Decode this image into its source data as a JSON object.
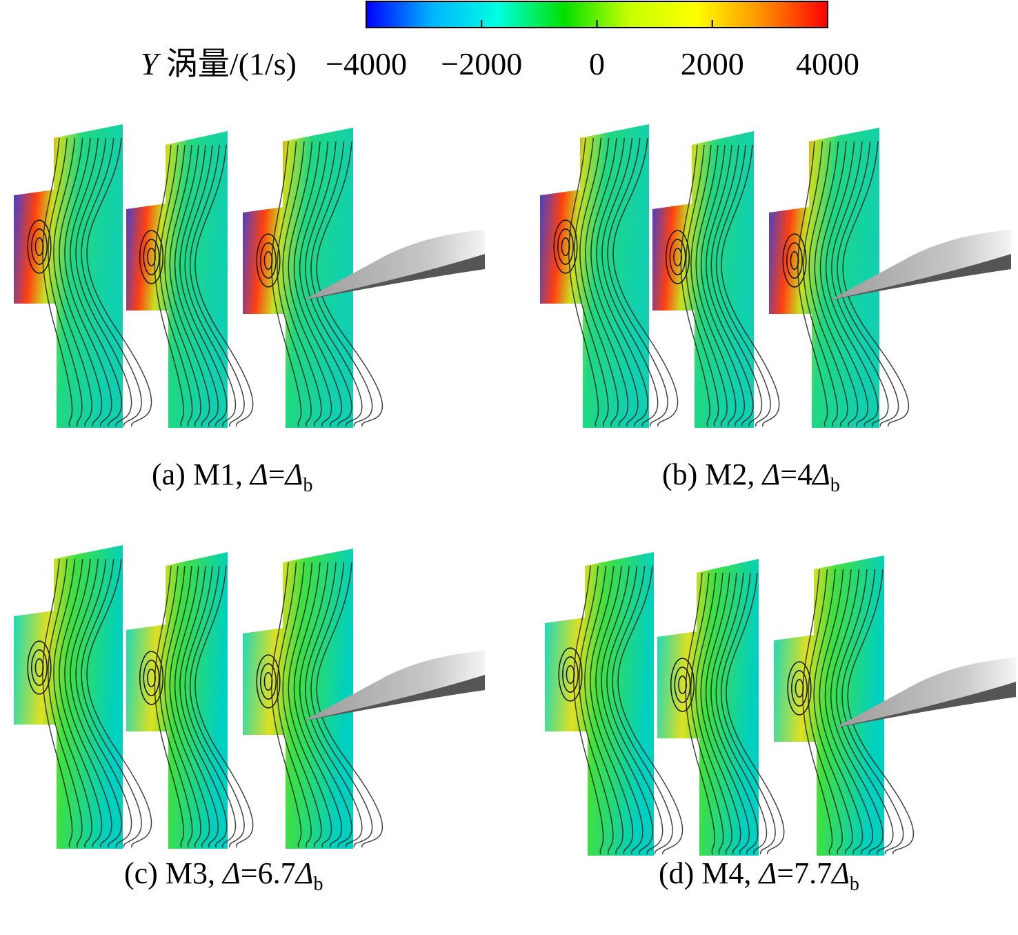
{
  "colorbar": {
    "label": "Y 涡量/(1/s)",
    "range": [
      -4000,
      4000
    ],
    "ticks": [
      {
        "value": -4000,
        "label": "−4000"
      },
      {
        "value": -2000,
        "label": "−2000"
      },
      0,
      2000,
      4000
    ],
    "colors": [
      "#0000ff",
      "#00b4ff",
      "#00ffe0",
      "#00e000",
      "#c8ff00",
      "#ffff00",
      "#ff9000",
      "#ff0000"
    ]
  },
  "panels": [
    {
      "label": "(a) M1,",
      "expression": "Δ=Δ",
      "subscript": "b"
    },
    {
      "label": "(b) M2,",
      "expression": "Δ=4Δ",
      "subscript": "b"
    },
    {
      "label": "(c) M3,",
      "expression": "Δ=6.7Δ",
      "subscript": "b"
    },
    {
      "label": "(d) M4,",
      "expression": "Δ=7.7Δ",
      "subscript": "b"
    }
  ]
}
